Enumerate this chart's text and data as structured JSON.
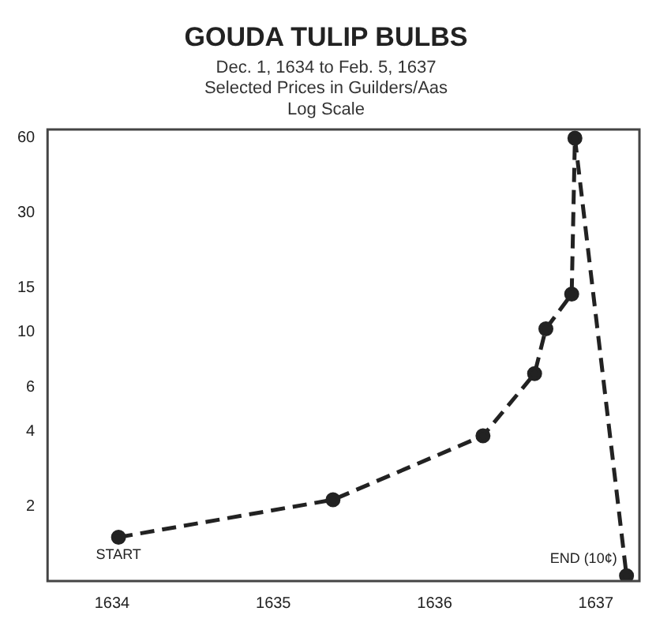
{
  "chart_data": {
    "type": "line",
    "title": "GOUDA TULIP BULBS",
    "subtitle": "Dec. 1, 1634 to Feb. 5, 1637",
    "x": [
      1634.04,
      1635.37,
      1636.3,
      1636.62,
      1636.69,
      1636.85,
      1636.87,
      1637.19
    ],
    "series": [
      {
        "color": "#222222",
        "values": [
          1.5,
          2.12,
          3.83,
          6.8,
          10.3,
          14.2,
          60,
          1.05
        ]
      }
    ],
    "xlim": [
      1633.6,
      1637.27
    ],
    "xticks": [
      1634,
      1635,
      1636,
      1637
    ],
    "ylim": [
      1,
      65
    ],
    "yticks": [
      2,
      4,
      6,
      10,
      15,
      30,
      60
    ],
    "log": "y",
    "grid": false,
    "legend": false,
    "marker": "circle",
    "line_style": "dashed",
    "annotations": [
      "Selected Prices in Guilders/Aas",
      "Log Scale",
      {
        "text": "START",
        "x": 1634.04,
        "y": 1.5
      },
      {
        "text": "END (10¢)",
        "x": 1637.19,
        "y": 1.05
      }
    ]
  }
}
